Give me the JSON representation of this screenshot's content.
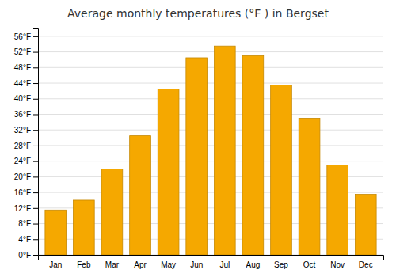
{
  "chart_data": {
    "type": "bar",
    "title": "Average monthly temperatures (°F ) in Bergset",
    "categories": [
      "Jan",
      "Feb",
      "Mar",
      "Apr",
      "May",
      "Jun",
      "Jul",
      "Aug",
      "Sep",
      "Oct",
      "Nov",
      "Dec"
    ],
    "values": [
      11.5,
      14.0,
      22.0,
      30.5,
      42.5,
      50.5,
      53.5,
      51.0,
      43.5,
      35.0,
      23.0,
      15.5
    ],
    "color": "#F5A800",
    "ylim": [
      0,
      58
    ],
    "yticks": [
      {
        "value": 0,
        "label": "0°F"
      },
      {
        "value": 4,
        "label": "4°F"
      },
      {
        "value": 8,
        "label": "8°F"
      },
      {
        "value": 12,
        "label": "12°F"
      },
      {
        "value": 16,
        "label": "16°F"
      },
      {
        "value": 20,
        "label": "20°F"
      },
      {
        "value": 24,
        "label": "24°F"
      },
      {
        "value": 28,
        "label": "28°F"
      },
      {
        "value": 32,
        "label": "32°F"
      },
      {
        "value": 36,
        "label": "36°F"
      },
      {
        "value": 40,
        "label": "40°F"
      },
      {
        "value": 44,
        "label": "44°F"
      },
      {
        "value": 48,
        "label": "48°F"
      },
      {
        "value": 52,
        "label": "52°F"
      },
      {
        "value": 56,
        "label": "56°F"
      }
    ],
    "grid": true
  }
}
